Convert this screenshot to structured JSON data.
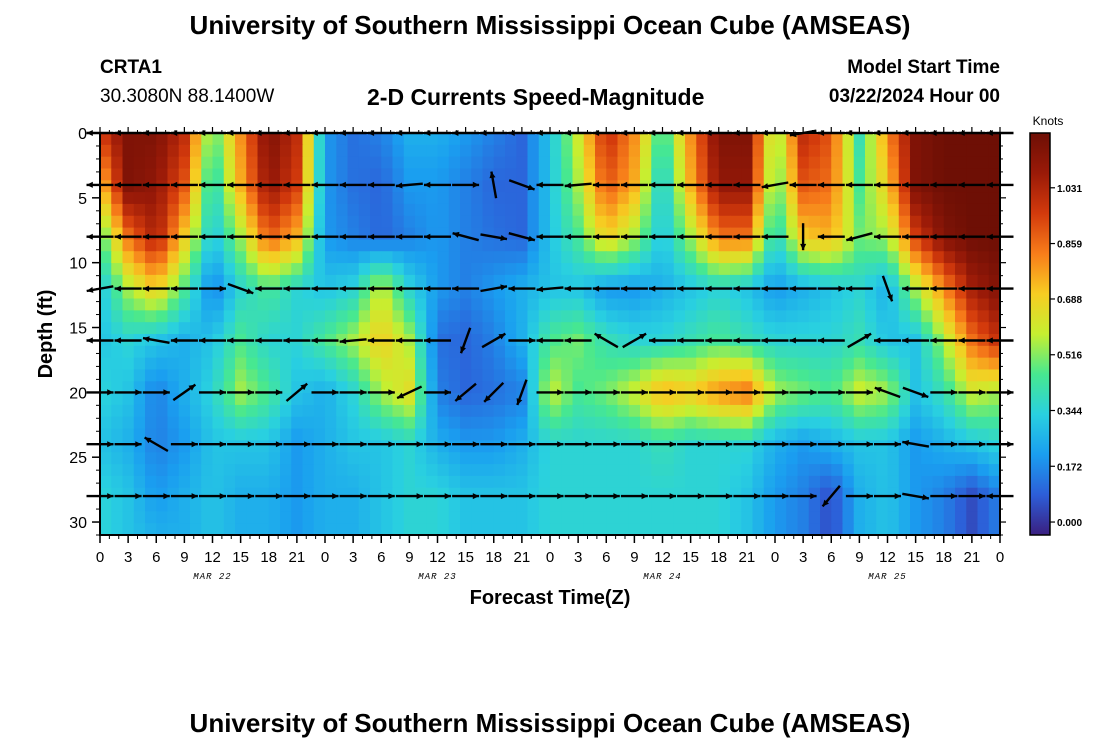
{
  "page": {
    "title_top": "University of Southern Mississippi Ocean Cube (AMSEAS)",
    "title_bottom": "University of Southern Mississippi Ocean Cube (AMSEAS)",
    "station": "CRTA1",
    "coords": "30.3080N  88.1400W",
    "plot_title": "2-D Currents Speed-Magnitude",
    "model_start_label": "Model Start Time",
    "model_start_value": "03/22/2024 Hour 00"
  },
  "colors": {
    "ramp": [
      "#3a1f80",
      "#2d5ed8",
      "#1a9ef0",
      "#29d0e0",
      "#47e890",
      "#c6ef30",
      "#f7cc22",
      "#f77d1a",
      "#d33a0c",
      "#9a1a08",
      "#6e0f05"
    ],
    "arrow": "#000000",
    "frame": "#000000"
  },
  "chart_data": {
    "type": "heatmap",
    "title": "2-D Currents Speed-Magnitude",
    "xlabel": "Forecast Time(Z)",
    "ylabel": "Depth (ft)",
    "x_tick_labels": [
      "0",
      "3",
      "6",
      "9",
      "12",
      "15",
      "18",
      "21",
      "0",
      "3",
      "6",
      "9",
      "12",
      "15",
      "18",
      "21",
      "0",
      "3",
      "6",
      "9",
      "12",
      "15",
      "18",
      "21",
      "0",
      "3",
      "6",
      "9",
      "12",
      "15",
      "18",
      "21",
      "0"
    ],
    "date_labels": [
      {
        "label": "MAR 22",
        "hour": 12
      },
      {
        "label": "MAR 23",
        "hour": 36
      },
      {
        "label": "MAR 24",
        "hour": 60
      },
      {
        "label": "MAR 25",
        "hour": 84
      }
    ],
    "x_range_hours": [
      0,
      96
    ],
    "y_ticks": [
      0,
      5,
      10,
      15,
      20,
      25,
      30
    ],
    "y_range_ft": [
      0,
      31
    ],
    "colorbar": {
      "unit_label": "Knots",
      "ticks": [
        0.0,
        0.172,
        0.344,
        0.516,
        0.688,
        0.859,
        1.031
      ],
      "range": [
        -0.04,
        1.2
      ]
    },
    "field": {
      "hours": [
        0,
        3,
        6,
        9,
        12,
        15,
        18,
        21,
        24,
        27,
        30,
        33,
        36,
        39,
        42,
        45,
        48,
        51,
        54,
        57,
        60,
        63,
        66,
        69,
        72,
        75,
        78,
        81,
        84,
        87,
        90,
        93,
        96
      ],
      "depths_ft": [
        0,
        4,
        8,
        12,
        16,
        20,
        24,
        28,
        31
      ],
      "speed_knots": [
        [
          0.95,
          1.15,
          1.15,
          1.0,
          0.45,
          0.8,
          1.15,
          1.0,
          0.2,
          0.12,
          0.15,
          0.25,
          0.25,
          0.2,
          0.15,
          0.1,
          0.3,
          0.6,
          1.0,
          0.8,
          0.4,
          0.8,
          1.15,
          1.15,
          0.5,
          1.0,
          0.9,
          0.4,
          0.8,
          1.15,
          1.2,
          1.2,
          1.2
        ],
        [
          0.7,
          1.15,
          1.1,
          0.9,
          0.35,
          0.75,
          1.1,
          0.95,
          0.2,
          0.12,
          0.1,
          0.2,
          0.2,
          0.15,
          0.1,
          0.1,
          0.3,
          0.55,
          0.9,
          0.75,
          0.3,
          0.75,
          1.1,
          1.1,
          0.45,
          0.9,
          0.85,
          0.45,
          0.7,
          1.15,
          1.2,
          1.2,
          1.2
        ],
        [
          0.45,
          0.85,
          1.05,
          0.7,
          0.3,
          0.55,
          0.9,
          0.75,
          0.2,
          0.15,
          0.1,
          0.15,
          0.2,
          0.15,
          0.12,
          0.1,
          0.3,
          0.45,
          0.7,
          0.55,
          0.3,
          0.55,
          0.85,
          0.85,
          0.35,
          0.7,
          0.75,
          0.5,
          0.55,
          0.95,
          1.15,
          1.2,
          1.2
        ],
        [
          0.3,
          0.55,
          0.7,
          0.45,
          0.15,
          0.35,
          0.45,
          0.35,
          0.3,
          0.35,
          0.6,
          0.35,
          0.2,
          0.15,
          0.2,
          0.25,
          0.3,
          0.3,
          0.2,
          0.2,
          0.25,
          0.3,
          0.35,
          0.3,
          0.2,
          0.25,
          0.3,
          0.35,
          0.25,
          0.55,
          0.8,
          1.05,
          1.15
        ],
        [
          0.3,
          0.35,
          0.3,
          0.25,
          0.3,
          0.45,
          0.35,
          0.35,
          0.45,
          0.55,
          0.7,
          0.55,
          0.12,
          0.1,
          0.15,
          0.25,
          0.45,
          0.5,
          0.4,
          0.35,
          0.35,
          0.4,
          0.45,
          0.4,
          0.35,
          0.35,
          0.35,
          0.4,
          0.3,
          0.3,
          0.55,
          0.85,
          1.0
        ],
        [
          0.35,
          0.3,
          0.15,
          0.25,
          0.35,
          0.55,
          0.45,
          0.3,
          0.25,
          0.35,
          0.55,
          0.65,
          0.15,
          0.1,
          0.12,
          0.15,
          0.6,
          0.45,
          0.5,
          0.6,
          0.75,
          0.7,
          0.8,
          0.85,
          0.55,
          0.5,
          0.45,
          0.6,
          0.55,
          0.3,
          0.4,
          0.6,
          0.55
        ],
        [
          0.3,
          0.25,
          0.15,
          0.2,
          0.3,
          0.3,
          0.3,
          0.2,
          0.25,
          0.3,
          0.3,
          0.35,
          0.25,
          0.2,
          0.2,
          0.25,
          0.35,
          0.35,
          0.35,
          0.35,
          0.4,
          0.35,
          0.35,
          0.35,
          0.25,
          0.2,
          0.25,
          0.3,
          0.3,
          0.2,
          0.25,
          0.3,
          0.35
        ],
        [
          0.35,
          0.3,
          0.2,
          0.25,
          0.3,
          0.25,
          0.25,
          0.2,
          0.25,
          0.25,
          0.3,
          0.35,
          0.35,
          0.3,
          0.3,
          0.3,
          0.35,
          0.35,
          0.35,
          0.35,
          0.35,
          0.35,
          0.35,
          0.3,
          0.2,
          0.15,
          0.05,
          0.25,
          0.3,
          0.2,
          0.15,
          0.05,
          0.15
        ],
        [
          0.35,
          0.3,
          0.25,
          0.25,
          0.3,
          0.25,
          0.25,
          0.2,
          0.25,
          0.25,
          0.3,
          0.35,
          0.35,
          0.3,
          0.3,
          0.3,
          0.35,
          0.35,
          0.35,
          0.35,
          0.35,
          0.35,
          0.35,
          0.3,
          0.2,
          0.15,
          0.05,
          0.25,
          0.3,
          0.2,
          0.15,
          0.05,
          0.15
        ]
      ]
    },
    "vectors": {
      "depths_ft": [
        0,
        4,
        8,
        12,
        16,
        20,
        24,
        28
      ],
      "hours": [
        0,
        3,
        6,
        9,
        12,
        15,
        18,
        21,
        24,
        27,
        30,
        33,
        36,
        39,
        42,
        45,
        48,
        51,
        54,
        57,
        60,
        63,
        66,
        69,
        72,
        75,
        78,
        81,
        84,
        87,
        90,
        93,
        96
      ],
      "dir_deg": [
        [
          180,
          180,
          180,
          180,
          180,
          180,
          180,
          180,
          180,
          180,
          180,
          180,
          180,
          180,
          180,
          180,
          180,
          180,
          180,
          180,
          180,
          180,
          180,
          180,
          180,
          190,
          180,
          180,
          180,
          180,
          180,
          180,
          180
        ],
        [
          180,
          180,
          180,
          180,
          180,
          180,
          180,
          180,
          180,
          180,
          180,
          185,
          180,
          0,
          100,
          340,
          180,
          185,
          180,
          180,
          180,
          180,
          180,
          180,
          190,
          180,
          180,
          180,
          180,
          180,
          180,
          180,
          180
        ],
        [
          180,
          180,
          180,
          180,
          180,
          180,
          180,
          180,
          180,
          180,
          180,
          180,
          180,
          165,
          350,
          345,
          180,
          180,
          180,
          180,
          180,
          180,
          180,
          180,
          180,
          270,
          180,
          195,
          180,
          180,
          180,
          180,
          180
        ],
        [
          190,
          180,
          180,
          180,
          0,
          -20,
          180,
          180,
          180,
          180,
          180,
          180,
          180,
          180,
          10,
          180,
          185,
          180,
          180,
          180,
          180,
          180,
          180,
          180,
          180,
          180,
          0,
          180,
          290,
          180,
          180,
          180,
          180
        ],
        [
          180,
          180,
          170,
          180,
          180,
          180,
          180,
          180,
          180,
          185,
          180,
          180,
          180,
          250,
          30,
          0,
          180,
          180,
          150,
          30,
          180,
          180,
          180,
          180,
          180,
          180,
          180,
          30,
          180,
          180,
          180,
          180,
          180
        ],
        [
          0,
          0,
          0,
          35,
          0,
          0,
          0,
          40,
          0,
          0,
          0,
          205,
          0,
          220,
          225,
          250,
          0,
          0,
          0,
          0,
          0,
          0,
          0,
          0,
          0,
          0,
          0,
          0,
          160,
          340,
          0,
          0,
          0
        ],
        [
          0,
          0,
          150,
          0,
          0,
          0,
          0,
          0,
          0,
          0,
          0,
          0,
          0,
          0,
          0,
          0,
          0,
          0,
          0,
          0,
          0,
          0,
          0,
          0,
          0,
          0,
          0,
          0,
          0,
          170,
          0,
          0,
          0
        ],
        [
          0,
          0,
          0,
          0,
          0,
          0,
          0,
          0,
          0,
          0,
          0,
          0,
          0,
          0,
          0,
          0,
          0,
          0,
          0,
          0,
          0,
          0,
          0,
          0,
          0,
          0,
          230,
          0,
          0,
          350,
          0,
          0,
          180
        ]
      ]
    }
  }
}
